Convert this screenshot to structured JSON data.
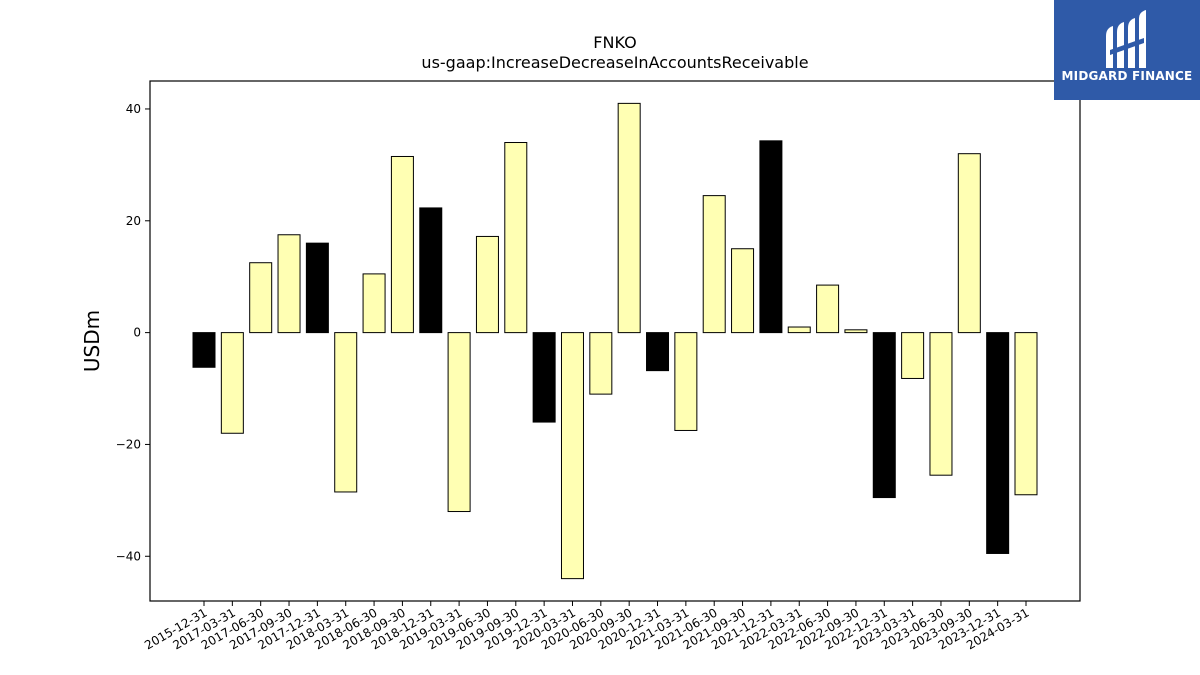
{
  "chart_data": {
    "type": "bar",
    "title": "FNKO",
    "subtitle": "us-gaap:IncreaseDecreaseInAccountsReceivable",
    "xlabel": "",
    "ylabel": "USDm",
    "ylim": [
      -48,
      45
    ],
    "yticks": [
      -40,
      -20,
      0,
      20,
      40
    ],
    "ytick_labels": [
      "−40",
      "−20",
      "0",
      "20",
      "40"
    ],
    "grid": false,
    "categories": [
      "2015-12-31",
      "2017-03-31",
      "2017-06-30",
      "2017-09-30",
      "2017-12-31",
      "2018-03-31",
      "2018-06-30",
      "2018-09-30",
      "2018-12-31",
      "2019-03-31",
      "2019-06-30",
      "2019-09-30",
      "2019-12-31",
      "2020-03-31",
      "2020-06-30",
      "2020-09-30",
      "2020-12-31",
      "2021-03-31",
      "2021-06-30",
      "2021-09-30",
      "2021-12-31",
      "2022-03-31",
      "2022-06-30",
      "2022-09-30",
      "2022-12-31",
      "2023-03-31",
      "2023-06-30",
      "2023-09-30",
      "2023-12-31",
      "2024-03-31"
    ],
    "values": [
      -6.2,
      -18.0,
      12.5,
      17.5,
      16.0,
      -28.5,
      10.5,
      31.5,
      22.3,
      -32.0,
      17.2,
      34.0,
      -16.0,
      -44.0,
      -11.0,
      41.0,
      -6.8,
      -17.5,
      24.5,
      15.0,
      34.3,
      1.0,
      8.5,
      0.5,
      -29.5,
      -8.2,
      -25.5,
      32.0,
      -39.5,
      -29.0
    ],
    "bar_colors": [
      "#000000",
      "#ffffb3",
      "#ffffb3",
      "#ffffb3",
      "#000000",
      "#ffffb3",
      "#ffffb3",
      "#ffffb3",
      "#000000",
      "#ffffb3",
      "#ffffb3",
      "#ffffb3",
      "#000000",
      "#ffffb3",
      "#ffffb3",
      "#ffffb3",
      "#000000",
      "#ffffb3",
      "#ffffb3",
      "#ffffb3",
      "#000000",
      "#ffffb3",
      "#ffffb3",
      "#ffffb3",
      "#000000",
      "#ffffb3",
      "#ffffb3",
      "#ffffb3",
      "#000000",
      "#ffffb3"
    ]
  },
  "logo": {
    "brand": "MIDGARD FINANCE",
    "icon": "midgard-logo-icon",
    "background": "#2f5aa8"
  }
}
